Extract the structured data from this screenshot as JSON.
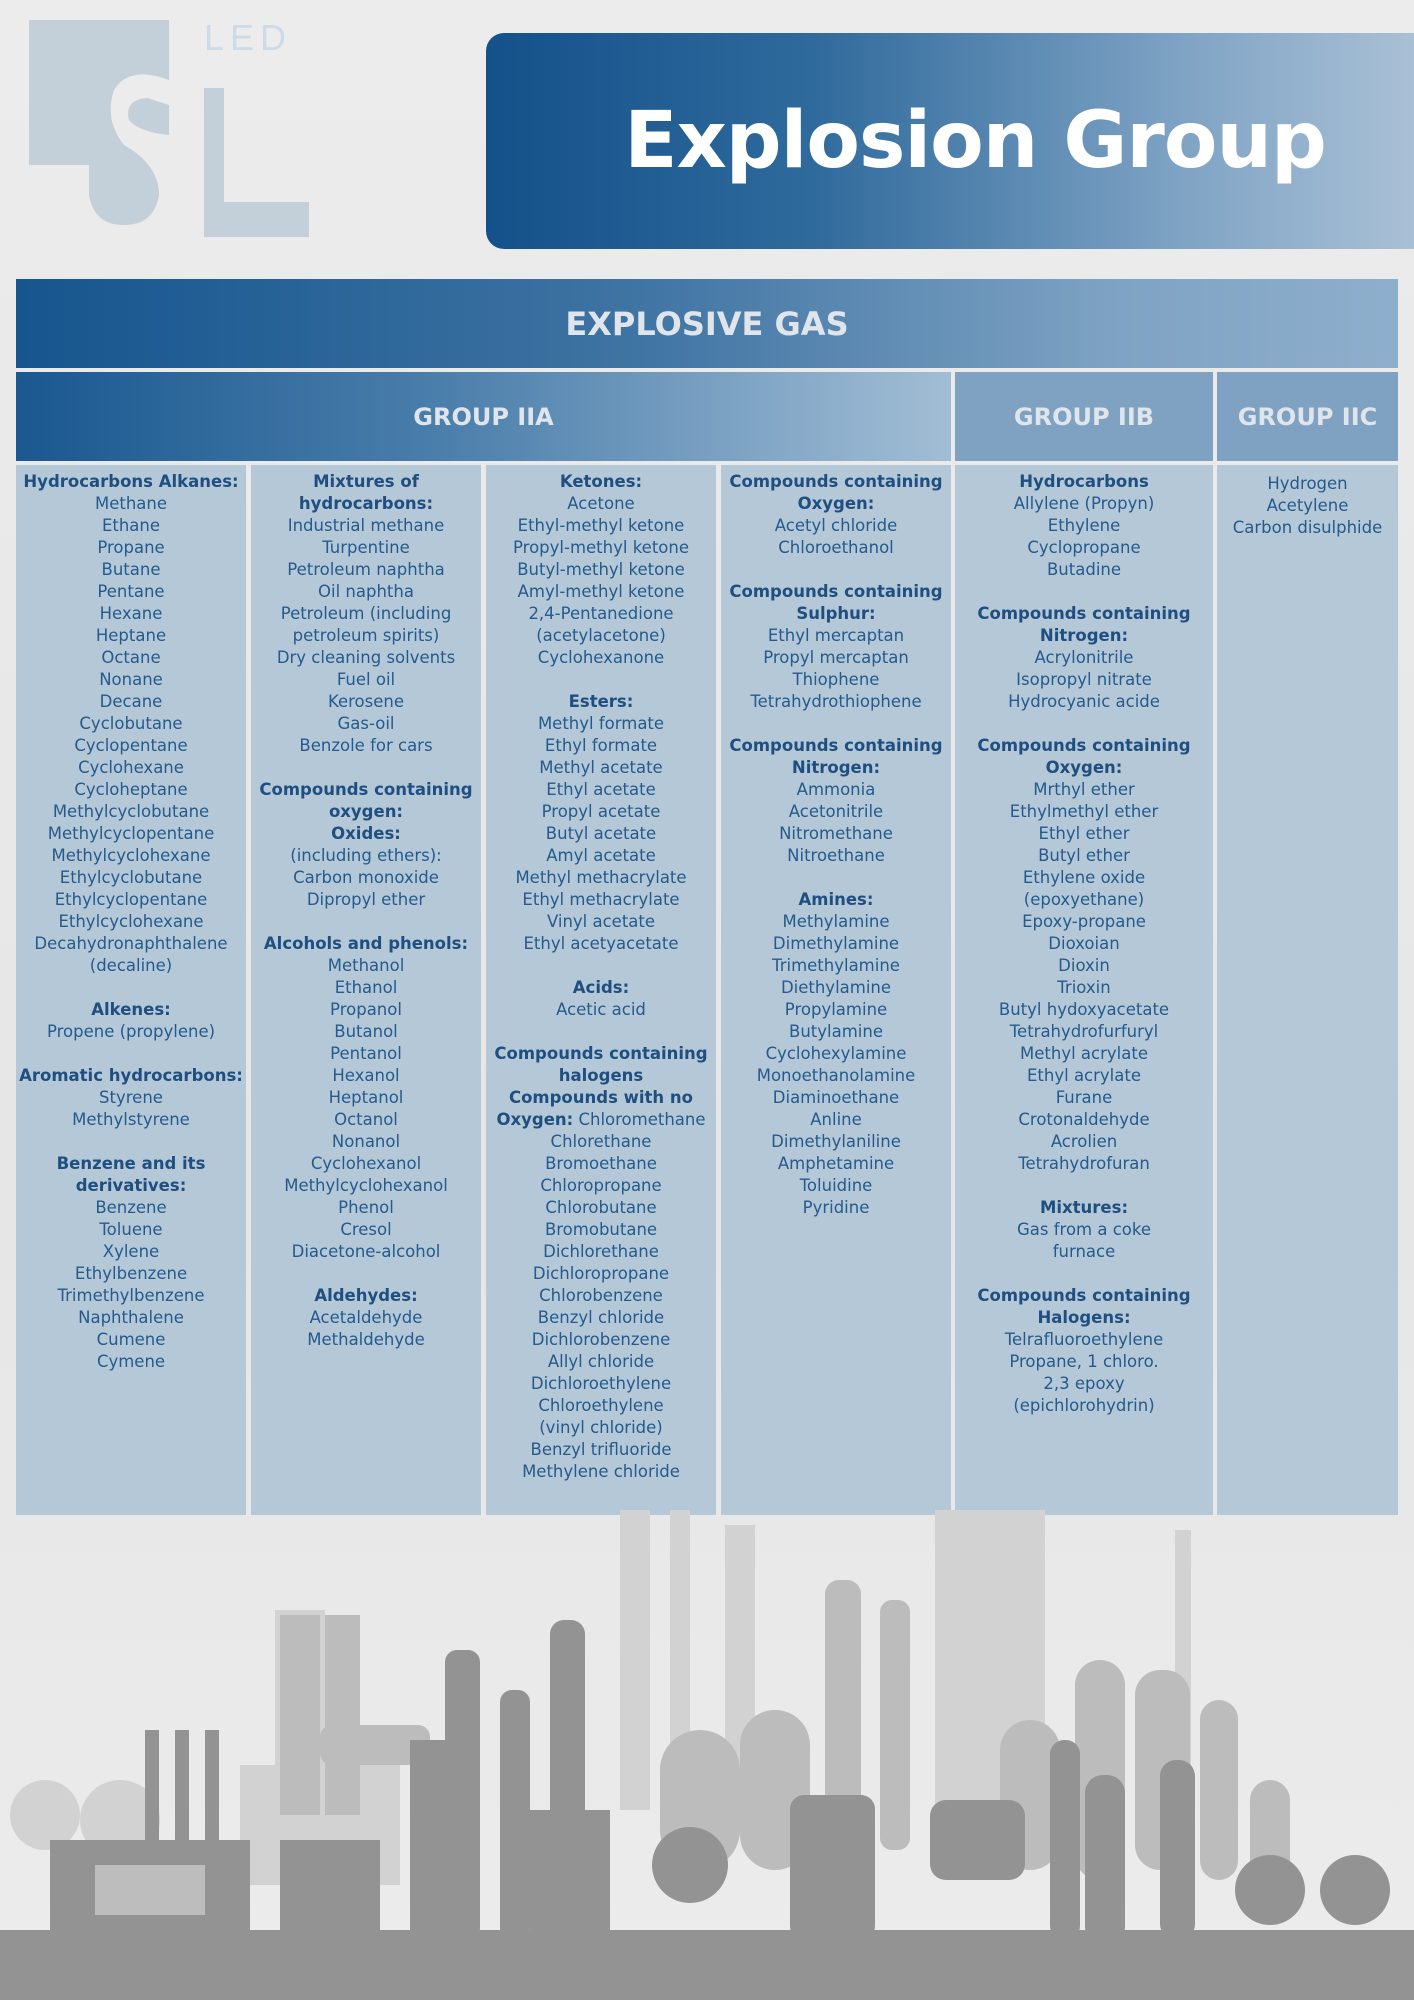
{
  "logo": {
    "text": "SL LED"
  },
  "header": {
    "title": "Explosion Group"
  },
  "table": {
    "title": "EXPLOSIVE GAS",
    "groups": [
      "GROUP IIA",
      "GROUP IIB",
      "GROUP IIC"
    ],
    "columns": [
      [
        {
          "b": "Hydrocarbons Alkanes:"
        },
        {
          "t": "Methane"
        },
        {
          "t": "Ethane"
        },
        {
          "t": "Propane"
        },
        {
          "t": "Butane"
        },
        {
          "t": "Pentane"
        },
        {
          "t": "Hexane"
        },
        {
          "t": "Heptane"
        },
        {
          "t": "Octane"
        },
        {
          "t": "Nonane"
        },
        {
          "t": "Decane"
        },
        {
          "t": "Cyclobutane"
        },
        {
          "t": "Cyclopentane"
        },
        {
          "t": "Cyclohexane"
        },
        {
          "t": "Cycloheptane"
        },
        {
          "t": "Methylcyclobutane"
        },
        {
          "t": "Methylcyclopentane"
        },
        {
          "t": "Methylcyclohexane"
        },
        {
          "t": "Ethylcyclobutane"
        },
        {
          "t": "Ethylcyclopentane"
        },
        {
          "t": "Ethylcyclohexane"
        },
        {
          "t": "Decahydronaphthalene"
        },
        {
          "t": "(decaline)"
        },
        {},
        {
          "b": "Alkenes:"
        },
        {
          "t": "Propene (propylene)"
        },
        {},
        {
          "b": "Aromatic hydrocarbons:"
        },
        {
          "t": "Styrene"
        },
        {
          "t": "Methylstyrene"
        },
        {},
        {
          "b": "Benzene and its"
        },
        {
          "b": "derivatives:"
        },
        {
          "t": "Benzene"
        },
        {
          "t": "Toluene"
        },
        {
          "t": "Xylene"
        },
        {
          "t": "Ethylbenzene"
        },
        {
          "t": "Trimethylbenzene"
        },
        {
          "t": "Naphthalene"
        },
        {
          "t": "Cumene"
        },
        {
          "t": "Cymene"
        }
      ],
      [
        {
          "b": "Mixtures of"
        },
        {
          "b": "hydrocarbons:"
        },
        {
          "t": "Industrial methane"
        },
        {
          "t": "Turpentine"
        },
        {
          "t": "Petroleum naphtha"
        },
        {
          "t": "Oil naphtha"
        },
        {
          "t": "Petroleum (including"
        },
        {
          "t": "petroleum spirits)"
        },
        {
          "t": "Dry cleaning solvents"
        },
        {
          "t": "Fuel oil"
        },
        {
          "t": "Kerosene"
        },
        {
          "t": "Gas-oil"
        },
        {
          "t": "Benzole for cars"
        },
        {},
        {
          "b": "Compounds containing"
        },
        {
          "b": "oxygen:"
        },
        {
          "b": "Oxides:"
        },
        {
          "t": "(including ethers):"
        },
        {
          "t": "Carbon monoxide"
        },
        {
          "t": "Dipropyl ether"
        },
        {},
        {
          "b": "Alcohols and phenols:"
        },
        {
          "t": "Methanol"
        },
        {
          "t": "Ethanol"
        },
        {
          "t": "Propanol"
        },
        {
          "t": "Butanol"
        },
        {
          "t": "Pentanol"
        },
        {
          "t": "Hexanol"
        },
        {
          "t": "Heptanol"
        },
        {
          "t": "Octanol"
        },
        {
          "t": "Nonanol"
        },
        {
          "t": "Cyclohexanol"
        },
        {
          "t": "Methylcyclohexanol"
        },
        {
          "t": "Phenol"
        },
        {
          "t": "Cresol"
        },
        {
          "t": "Diacetone-alcohol"
        },
        {},
        {
          "b": "Aldehydes:"
        },
        {
          "t": "Acetaldehyde"
        },
        {
          "t": "Methaldehyde"
        }
      ],
      [
        {
          "b": "Ketones:"
        },
        {
          "t": "Acetone"
        },
        {
          "t": "Ethyl-methyl ketone"
        },
        {
          "t": "Propyl-methyl ketone"
        },
        {
          "t": "Butyl-methyl ketone"
        },
        {
          "t": "Amyl-methyl ketone"
        },
        {
          "t": "2,4-Pentanedione"
        },
        {
          "t": "(acetylacetone)"
        },
        {
          "t": "Cyclohexanone"
        },
        {},
        {
          "b": "Esters:"
        },
        {
          "t": "Methyl formate"
        },
        {
          "t": "Ethyl formate"
        },
        {
          "t": "Methyl acetate"
        },
        {
          "t": "Ethyl acetate"
        },
        {
          "t": "Propyl acetate"
        },
        {
          "t": "Butyl acetate"
        },
        {
          "t": "Amyl acetate"
        },
        {
          "t": "Methyl methacrylate"
        },
        {
          "t": "Ethyl methacrylate"
        },
        {
          "t": "Vinyl acetate"
        },
        {
          "t": "Ethyl acetyacetate"
        },
        {},
        {
          "b": "Acids:"
        },
        {
          "t": "Acetic acid"
        },
        {},
        {
          "b": "Compounds containing"
        },
        {
          "b": "halogens"
        },
        {
          "b": "Compounds with no"
        },
        {
          "b": "Oxygen:",
          "t": " Chloromethane"
        },
        {
          "t": "Chlorethane"
        },
        {
          "t": "Bromoethane"
        },
        {
          "t": "Chloropropane"
        },
        {
          "t": "Chlorobutane"
        },
        {
          "t": "Bromobutane"
        },
        {
          "t": "Dichlorethane"
        },
        {
          "t": "Dichloropropane"
        },
        {
          "t": "Chlorobenzene"
        },
        {
          "t": "Benzyl chloride"
        },
        {
          "t": "Dichlorobenzene"
        },
        {
          "t": "Allyl chloride"
        },
        {
          "t": "Dichloroethylene"
        },
        {
          "t": "Chloroethylene"
        },
        {
          "t": "(vinyl chloride)"
        },
        {
          "t": "Benzyl trifluoride"
        },
        {
          "t": "Methylene chloride"
        }
      ],
      [
        {
          "b": "Compounds containing"
        },
        {
          "b": "Oxygen:"
        },
        {
          "t": "Acetyl chloride"
        },
        {
          "t": "Chloroethanol"
        },
        {},
        {
          "b": "Compounds containing"
        },
        {
          "b": "Sulphur:"
        },
        {
          "t": "Ethyl mercaptan"
        },
        {
          "t": "Propyl mercaptan"
        },
        {
          "t": "Thiophene"
        },
        {
          "t": "Tetrahydrothiophene"
        },
        {},
        {
          "b": "Compounds containing"
        },
        {
          "b": "Nitrogen:"
        },
        {
          "t": "Ammonia"
        },
        {
          "t": "Acetonitrile"
        },
        {
          "t": "Nitromethane"
        },
        {
          "t": "Nitroethane"
        },
        {},
        {
          "b": "Amines:"
        },
        {
          "t": "Methylamine"
        },
        {
          "t": "Dimethylamine"
        },
        {
          "t": "Trimethylamine"
        },
        {
          "t": "Diethylamine"
        },
        {
          "t": "Propylamine"
        },
        {
          "t": "Butylamine"
        },
        {
          "t": "Cyclohexylamine"
        },
        {
          "t": "Monoethanolamine"
        },
        {
          "t": "Diaminoethane"
        },
        {
          "t": "Anline"
        },
        {
          "t": "Dimethylaniline"
        },
        {
          "t": "Amphetamine"
        },
        {
          "t": "Toluidine"
        },
        {
          "t": "Pyridine"
        }
      ],
      [
        {
          "b": "Hydrocarbons"
        },
        {
          "t": "Allylene (Propyn)"
        },
        {
          "t": "Ethylene"
        },
        {
          "t": "Cyclopropane"
        },
        {
          "t": "Butadine"
        },
        {},
        {
          "b": "Compounds containing"
        },
        {
          "b": "Nitrogen:"
        },
        {
          "t": "Acrylonitrile"
        },
        {
          "t": "Isopropyl nitrate"
        },
        {
          "t": "Hydrocyanic acide"
        },
        {},
        {
          "b": "Compounds containing"
        },
        {
          "b": "Oxygen:"
        },
        {
          "t": "Mrthyl ether"
        },
        {
          "t": "Ethylmethyl ether"
        },
        {
          "t": "Ethyl ether"
        },
        {
          "t": "Butyl ether"
        },
        {
          "t": "Ethylene oxide"
        },
        {
          "t": "(epoxyethane)"
        },
        {
          "t": "Epoxy-propane"
        },
        {
          "t": "Dioxoian"
        },
        {
          "t": "Dioxin"
        },
        {
          "t": "Trioxin"
        },
        {
          "t": "Butyl hydoxyacetate"
        },
        {
          "t": "Tetrahydrofurfuryl"
        },
        {
          "t": "Methyl acrylate"
        },
        {
          "t": "Ethyl acrylate"
        },
        {
          "t": "Furane"
        },
        {
          "t": "Crotonaldehyde"
        },
        {
          "t": "Acrolien"
        },
        {
          "t": "Tetrahydrofuran"
        },
        {},
        {
          "b": "Mixtures:"
        },
        {
          "t": "Gas from a coke"
        },
        {
          "t": "furnace"
        },
        {},
        {
          "b": "Compounds containing"
        },
        {
          "b": "Halogens:"
        },
        {
          "t": "Telrafluoroethylene"
        },
        {
          "t": "Propane, 1 chloro."
        },
        {
          "t": "2,3 epoxy"
        },
        {
          "t": "(epichlorohydrin)"
        }
      ],
      [
        {
          "t": "Hydrogen"
        },
        {
          "t": "Acetylene"
        },
        {
          "t": "Carbon disulphide"
        }
      ]
    ]
  },
  "colors": {
    "primary": "#14518a",
    "cell": "#b5c8d8",
    "text": "#245a8c",
    "skyline": "#8f8f8f"
  }
}
